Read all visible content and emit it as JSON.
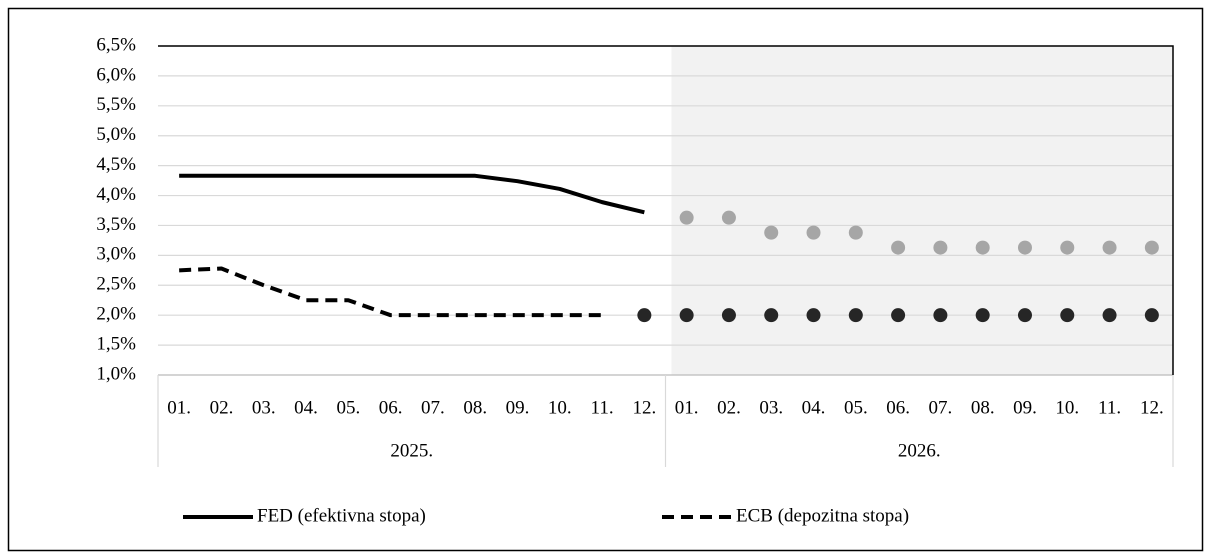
{
  "chart_data": {
    "type": "line",
    "categories": [
      "01.",
      "02.",
      "03.",
      "04.",
      "05.",
      "06.",
      "07.",
      "08.",
      "09.",
      "10.",
      "11.",
      "12.",
      "01.",
      "02.",
      "03.",
      "04.",
      "05.",
      "06.",
      "07.",
      "08.",
      "09.",
      "10.",
      "11.",
      "12."
    ],
    "category_groups": [
      "2025.",
      "2026."
    ],
    "ylim": [
      1,
      6.5
    ],
    "yticks": [
      {
        "value": 1,
        "label": "1,0%"
      },
      {
        "value": 1.5,
        "label": "1,5%"
      },
      {
        "value": 2,
        "label": "2,0%"
      },
      {
        "value": 2.5,
        "label": "2,5%"
      },
      {
        "value": 3,
        "label": "3,0%"
      },
      {
        "value": 3.5,
        "label": "3,5%"
      },
      {
        "value": 4,
        "label": "4,0%"
      },
      {
        "value": 4.5,
        "label": "4,5%"
      },
      {
        "value": 5,
        "label": "5,0%"
      },
      {
        "value": 5.5,
        "label": "5,5%"
      },
      {
        "value": 6,
        "label": "6,0%"
      },
      {
        "value": 6.5,
        "label": "6,5%"
      }
    ],
    "grid": true,
    "legend": "bottom",
    "series": [
      {
        "name": "FED (efektivna stopa)",
        "color": "#000000",
        "style": "solid",
        "values": [
          4.33,
          4.33,
          4.33,
          4.33,
          4.33,
          4.33,
          4.33,
          4.33,
          4.24,
          4.11,
          3.89,
          3.72,
          null,
          null,
          null,
          null,
          null,
          null,
          null,
          null,
          null,
          null,
          null,
          null
        ]
      },
      {
        "name": "ECB (depozitna stopa)",
        "color": "#000000",
        "style": "dashed",
        "values": [
          2.75,
          2.78,
          2.5,
          2.25,
          2.25,
          2.0,
          2.0,
          2.0,
          2.0,
          2.0,
          2.0,
          null,
          null,
          null,
          null,
          null,
          null,
          null,
          null,
          null,
          null,
          null,
          null,
          null
        ]
      },
      {
        "color": "#a6a6a6",
        "style": "markers",
        "values": [
          null,
          null,
          null,
          null,
          null,
          null,
          null,
          null,
          null,
          null,
          null,
          null,
          3.63,
          3.63,
          3.38,
          3.38,
          3.38,
          3.13,
          3.13,
          3.13,
          3.13,
          3.13,
          3.13,
          3.13
        ]
      },
      {
        "color": "#262626",
        "style": "markers",
        "values": [
          null,
          null,
          null,
          null,
          null,
          null,
          null,
          null,
          null,
          null,
          null,
          2.0,
          2.0,
          2.0,
          2.0,
          2.0,
          2.0,
          2.0,
          2.0,
          2.0,
          2.0,
          2.0,
          2.0,
          2.0
        ]
      }
    ]
  }
}
